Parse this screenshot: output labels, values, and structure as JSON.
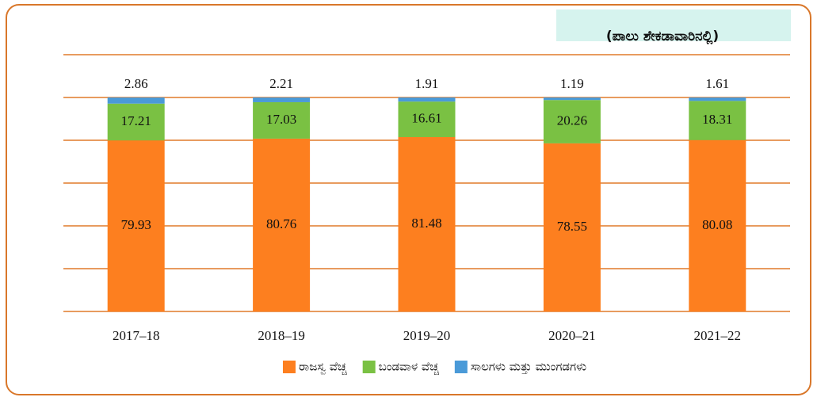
{
  "chart_data": {
    "type": "stacked_bar",
    "annotation": "(ಪಾಲು ಶೇಕಡಾವಾರಿನಲ್ಲಿ)",
    "categories": [
      "2017–18",
      "2018–19",
      "2019–20",
      "2020–21",
      "2021–22"
    ],
    "series": [
      {
        "name": "ರಾಜಸ್ವ ವೆಚ್ಚ",
        "color": "#fd7f1f",
        "values": [
          79.93,
          80.76,
          81.48,
          78.55,
          80.08
        ]
      },
      {
        "name": "ಬಂಡವಾಳ ವೆಚ್ಚ",
        "color": "#7ac143",
        "values": [
          17.21,
          17.03,
          16.61,
          20.26,
          18.31
        ]
      },
      {
        "name": "ಸಾಲಗಳು ಮತ್ತು ಮುಂಗಡಗಳು",
        "color": "#4a9ad8",
        "values": [
          2.86,
          2.21,
          1.91,
          1.19,
          1.61
        ]
      }
    ],
    "ylim": [
      0,
      120
    ],
    "yticks": [
      0,
      20,
      40,
      60,
      80,
      100,
      120
    ],
    "grid": true,
    "legend": "bottom"
  }
}
